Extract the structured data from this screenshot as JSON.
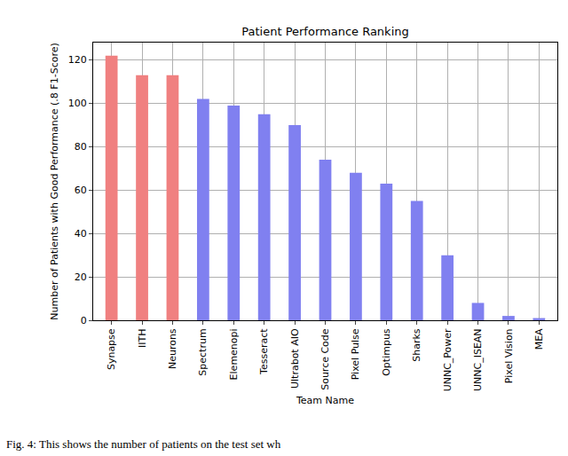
{
  "chart_data": {
    "type": "bar",
    "title": "Patient Performance Ranking",
    "x_label": "Team Name",
    "y_label": "Number of Patients with Good Performance (.8 F1-Score)",
    "categories": [
      "Synapse",
      "IITH",
      "Neurons",
      "Spectrum",
      "Elemenopi",
      "Tesseract",
      "Ultrabot AIO",
      "Source Code",
      "Pixel Pulse",
      "Optimpus",
      "Sharks",
      "UNNC_Power",
      "UNNC_ISEAN",
      "Pixel Vision",
      "MEA"
    ],
    "values": [
      122,
      113,
      113,
      102,
      99,
      95,
      90,
      74,
      68,
      63,
      55,
      30,
      8,
      2,
      1
    ],
    "colors": [
      "#f08080",
      "#f08080",
      "#f08080",
      "#8080f0",
      "#8080f0",
      "#8080f0",
      "#8080f0",
      "#8080f0",
      "#8080f0",
      "#8080f0",
      "#8080f0",
      "#8080f0",
      "#8080f0",
      "#8080f0",
      "#8080f0"
    ],
    "ylim": [
      0,
      128
    ],
    "yticks": [
      0,
      20,
      40,
      60,
      80,
      100,
      120
    ],
    "grid": true,
    "annotations": [
      "Fig. 4: This shows the number of patients on the test set wh"
    ]
  }
}
